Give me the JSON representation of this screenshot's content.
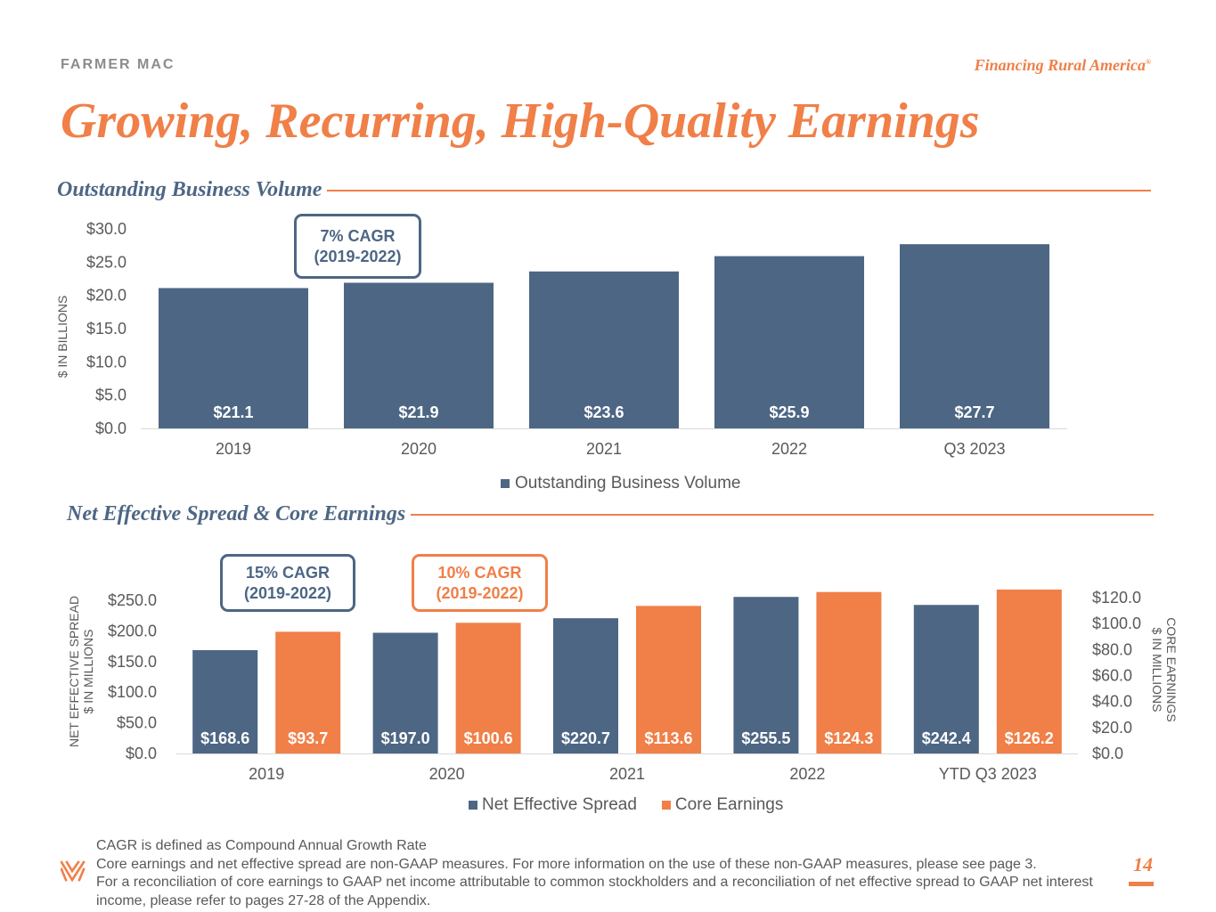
{
  "header": {
    "brand": "FARMER MAC",
    "tagline": "Financing Rural America",
    "tagline_mark": "®",
    "title": "Growing, Recurring, High-Quality Earnings"
  },
  "colors": {
    "accent": "#f07f48",
    "navy": "#4d6684",
    "gray_text": "#595959"
  },
  "sections": {
    "volume_heading": "Outstanding Business Volume",
    "spread_heading": "Net Effective Spread & Core Earnings"
  },
  "callouts": {
    "volume_cagr": {
      "line1": "7% CAGR",
      "line2": "(2019-2022)"
    },
    "spread_cagr": {
      "line1": "15% CAGR",
      "line2": "(2019-2022)"
    },
    "earnings_cagr": {
      "line1": "10% CAGR",
      "line2": "(2019-2022)"
    }
  },
  "chart_data": [
    {
      "type": "bar",
      "title": "Outstanding Business Volume",
      "categories": [
        "2019",
        "2020",
        "2021",
        "2022",
        "Q3 2023"
      ],
      "series": [
        {
          "name": "Outstanding Business Volume",
          "values": [
            21.1,
            21.9,
            23.6,
            25.9,
            27.7
          ],
          "labels": [
            "$21.1",
            "$21.9",
            "$23.6",
            "$25.9",
            "$27.7"
          ],
          "color": "#4d6684"
        }
      ],
      "ylabel": "$ IN BILLIONS",
      "ylim": [
        0,
        30
      ],
      "yticks": [
        "$0.0",
        "$5.0",
        "$10.0",
        "$15.0",
        "$20.0",
        "$25.0",
        "$30.0"
      ],
      "legend": "bottom"
    },
    {
      "type": "bar",
      "title": "Net Effective Spread & Core Earnings",
      "categories": [
        "2019",
        "2020",
        "2021",
        "2022",
        "YTD Q3 2023"
      ],
      "series": [
        {
          "name": "Net Effective Spread",
          "axis": "left",
          "values": [
            168.6,
            197.0,
            220.7,
            255.5,
            242.4
          ],
          "labels": [
            "$168.6",
            "$197.0",
            "$220.7",
            "$255.5",
            "$242.4"
          ],
          "color": "#4d6684"
        },
        {
          "name": "Core Earnings",
          "axis": "right",
          "values": [
            93.7,
            100.6,
            113.6,
            124.3,
            126.2
          ],
          "labels": [
            "$93.7",
            "$100.6",
            "$113.6",
            "$124.3",
            "$126.2"
          ],
          "color": "#f07f48"
        }
      ],
      "ylabel_left": [
        "NET EFFECTIVE SPREAD",
        "$ IN MILLIONS"
      ],
      "ylabel_right": [
        "CORE EARNINGS",
        "$ IN MILLIONS"
      ],
      "ylim_left": [
        0,
        250
      ],
      "ylim_right": [
        0,
        120
      ],
      "yticks_left": [
        "$0.0",
        "$50.0",
        "$100.0",
        "$150.0",
        "$200.0",
        "$250.0"
      ],
      "yticks_right": [
        "$0.0",
        "$20.0",
        "$40.0",
        "$60.0",
        "$80.0",
        "$100.0",
        "$120.0"
      ],
      "legend": "bottom"
    }
  ],
  "footnotes": [
    "CAGR is defined as Compound Annual Growth Rate",
    "Core earnings and net effective spread are non-GAAP measures.  For more information on the use of these non-GAAP measures, please see page 3.",
    "For a reconciliation of core earnings to GAAP net income attributable to common stockholders and a reconciliation of net effective spread to GAAP net interest income, please refer to pages 27-28 of the Appendix."
  ],
  "page_number": "14"
}
